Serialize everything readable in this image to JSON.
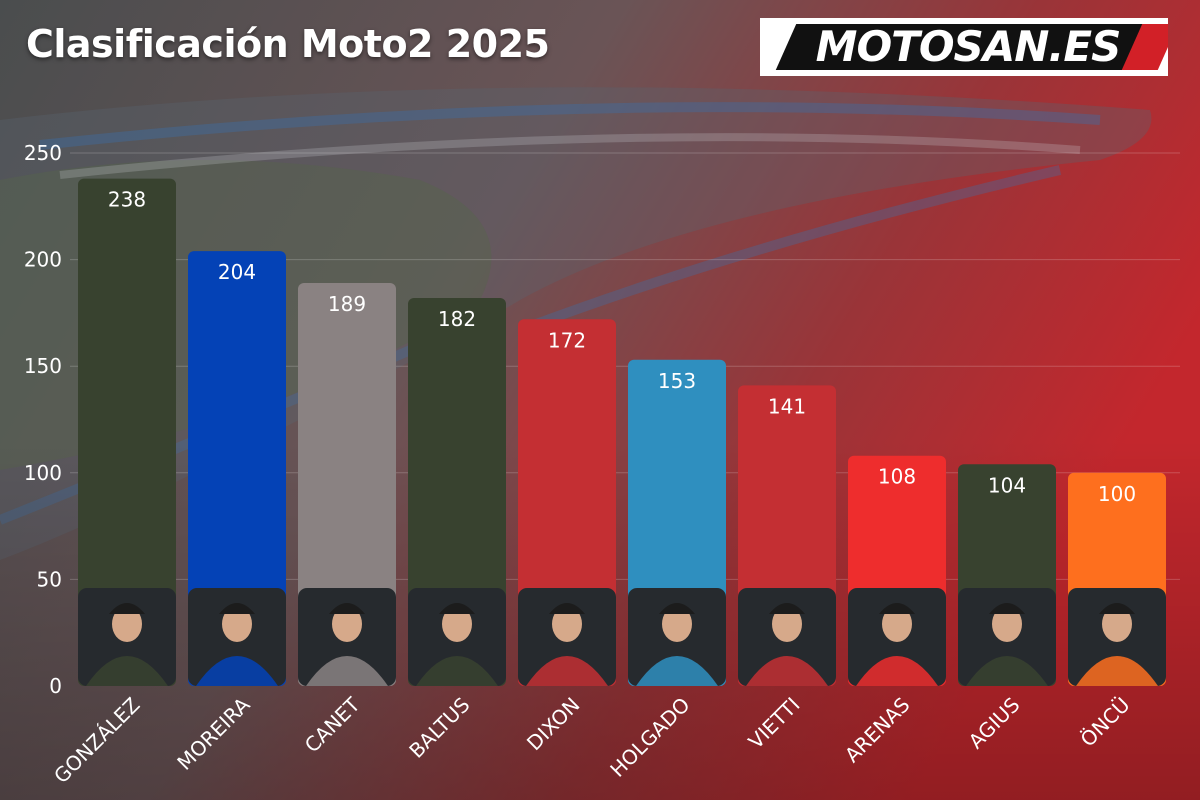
{
  "header": {
    "title": "Clasificación Moto2 2025"
  },
  "logo": {
    "text": "MOTOSAN.ES"
  },
  "chart_data": {
    "type": "bar",
    "title": "Clasificación Moto2 2025",
    "xlabel": "",
    "ylabel": "",
    "ylim": [
      0,
      250
    ],
    "yticks": [
      0,
      50,
      100,
      150,
      200,
      250
    ],
    "grid": true,
    "categories": [
      "GONZÁLEZ",
      "MOREIRA",
      "CANET",
      "BALTUS",
      "DIXON",
      "HOLGADO",
      "VIETTI",
      "ARENAS",
      "AGIUS",
      "ÖNCÜ"
    ],
    "values": [
      238,
      204,
      189,
      182,
      172,
      153,
      141,
      108,
      104,
      100
    ],
    "colors": [
      "#38422f",
      "#0442b6",
      "#8a8282",
      "#38422f",
      "#c42f33",
      "#2f8fbf",
      "#c42f33",
      "#ee2d2d",
      "#38422f",
      "#fe6f1e"
    ],
    "data_labels": [
      "238",
      "204",
      "189",
      "182",
      "172",
      "153",
      "141",
      "108",
      "104",
      "100"
    ]
  }
}
